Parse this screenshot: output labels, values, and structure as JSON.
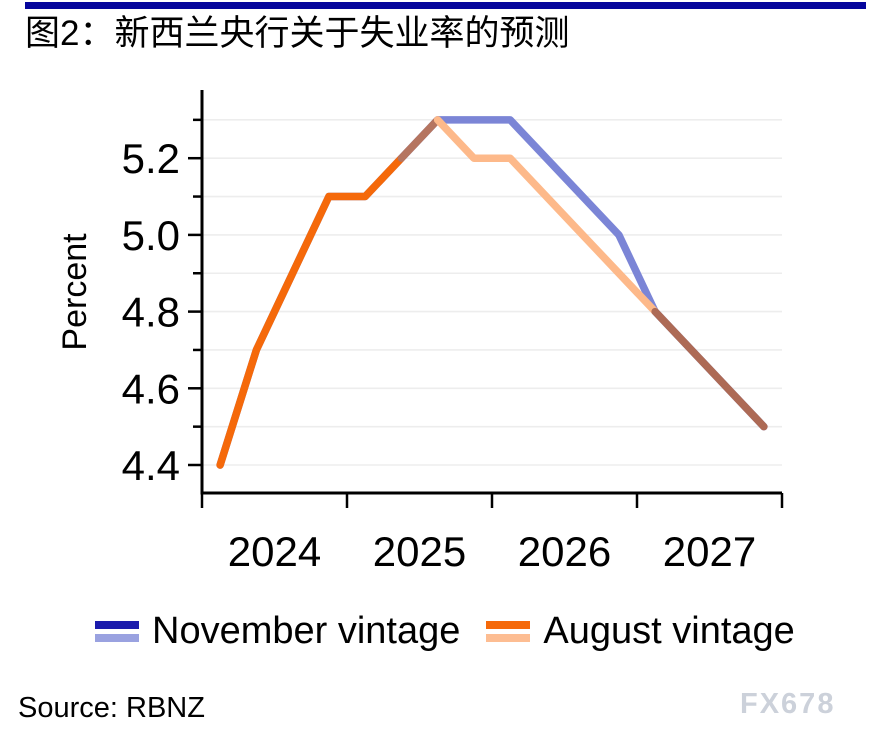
{
  "page": {
    "title": "图2：新西兰央行关于失业率的预测",
    "source": "Source: RBNZ",
    "watermark": "FX678",
    "accent_color": "#05059c"
  },
  "chart_data": {
    "type": "line",
    "title": "图2：新西兰央行关于失业率的预测",
    "xlabel": "",
    "ylabel": "Percent",
    "ylim": [
      4.35,
      5.35
    ],
    "grid": true,
    "legend_position": "bottom",
    "x_unit": "quarterly",
    "categories": [
      "2024Q1",
      "2024Q2",
      "2024Q3",
      "2024Q4",
      "2025Q1",
      "2025Q2",
      "2025Q3",
      "2025Q4",
      "2026Q1",
      "2026Q2",
      "2026Q3",
      "2026Q4",
      "2027Q1",
      "2027Q2",
      "2027Q3",
      "2027Q4"
    ],
    "x_year_labels": [
      "2024",
      "2025",
      "2026",
      "2027"
    ],
    "y_major_ticks": [
      {
        "value": 4.4,
        "label": "4.4"
      },
      {
        "value": 4.6,
        "label": "4.6"
      },
      {
        "value": 4.8,
        "label": "4.8"
      },
      {
        "value": 5.0,
        "label": "5.0"
      },
      {
        "value": 5.2,
        "label": "5.2"
      }
    ],
    "y_minor_ticks": [
      4.5,
      4.7,
      4.9,
      5.1,
      5.3
    ],
    "y_gridlines": [
      4.4,
      4.5,
      4.6,
      4.7,
      4.8,
      4.9,
      5.0,
      5.1,
      5.2,
      5.3
    ],
    "series": [
      {
        "name": "November vintage",
        "color": "#7b85d6",
        "legend_colors": [
          "#1b1bac",
          "#9aa2e0"
        ],
        "values": [
          4.4,
          4.7,
          4.9,
          5.1,
          5.1,
          5.2,
          5.3,
          5.3,
          5.3,
          5.2,
          5.1,
          5.0,
          4.8,
          4.7,
          4.6,
          4.5
        ]
      },
      {
        "name": "August vintage",
        "color": "#f5690a",
        "legend_colors": [
          "#f5690a",
          "#fdbd92"
        ],
        "values": [
          4.4,
          4.7,
          4.9,
          5.1,
          5.1,
          5.2,
          5.3,
          5.2,
          5.2,
          5.1,
          5.0,
          4.9,
          4.8,
          4.7,
          4.6,
          4.5
        ],
        "overlap_segments": [
          {
            "from": 0,
            "to": 5,
            "color": "#f5690a"
          },
          {
            "from": 5,
            "to": 6,
            "color": "#b57560"
          },
          {
            "from": 6,
            "to": 12,
            "color": "#fdb98a"
          },
          {
            "from": 12,
            "to": 15,
            "color": "#ad6a55"
          }
        ]
      }
    ]
  }
}
